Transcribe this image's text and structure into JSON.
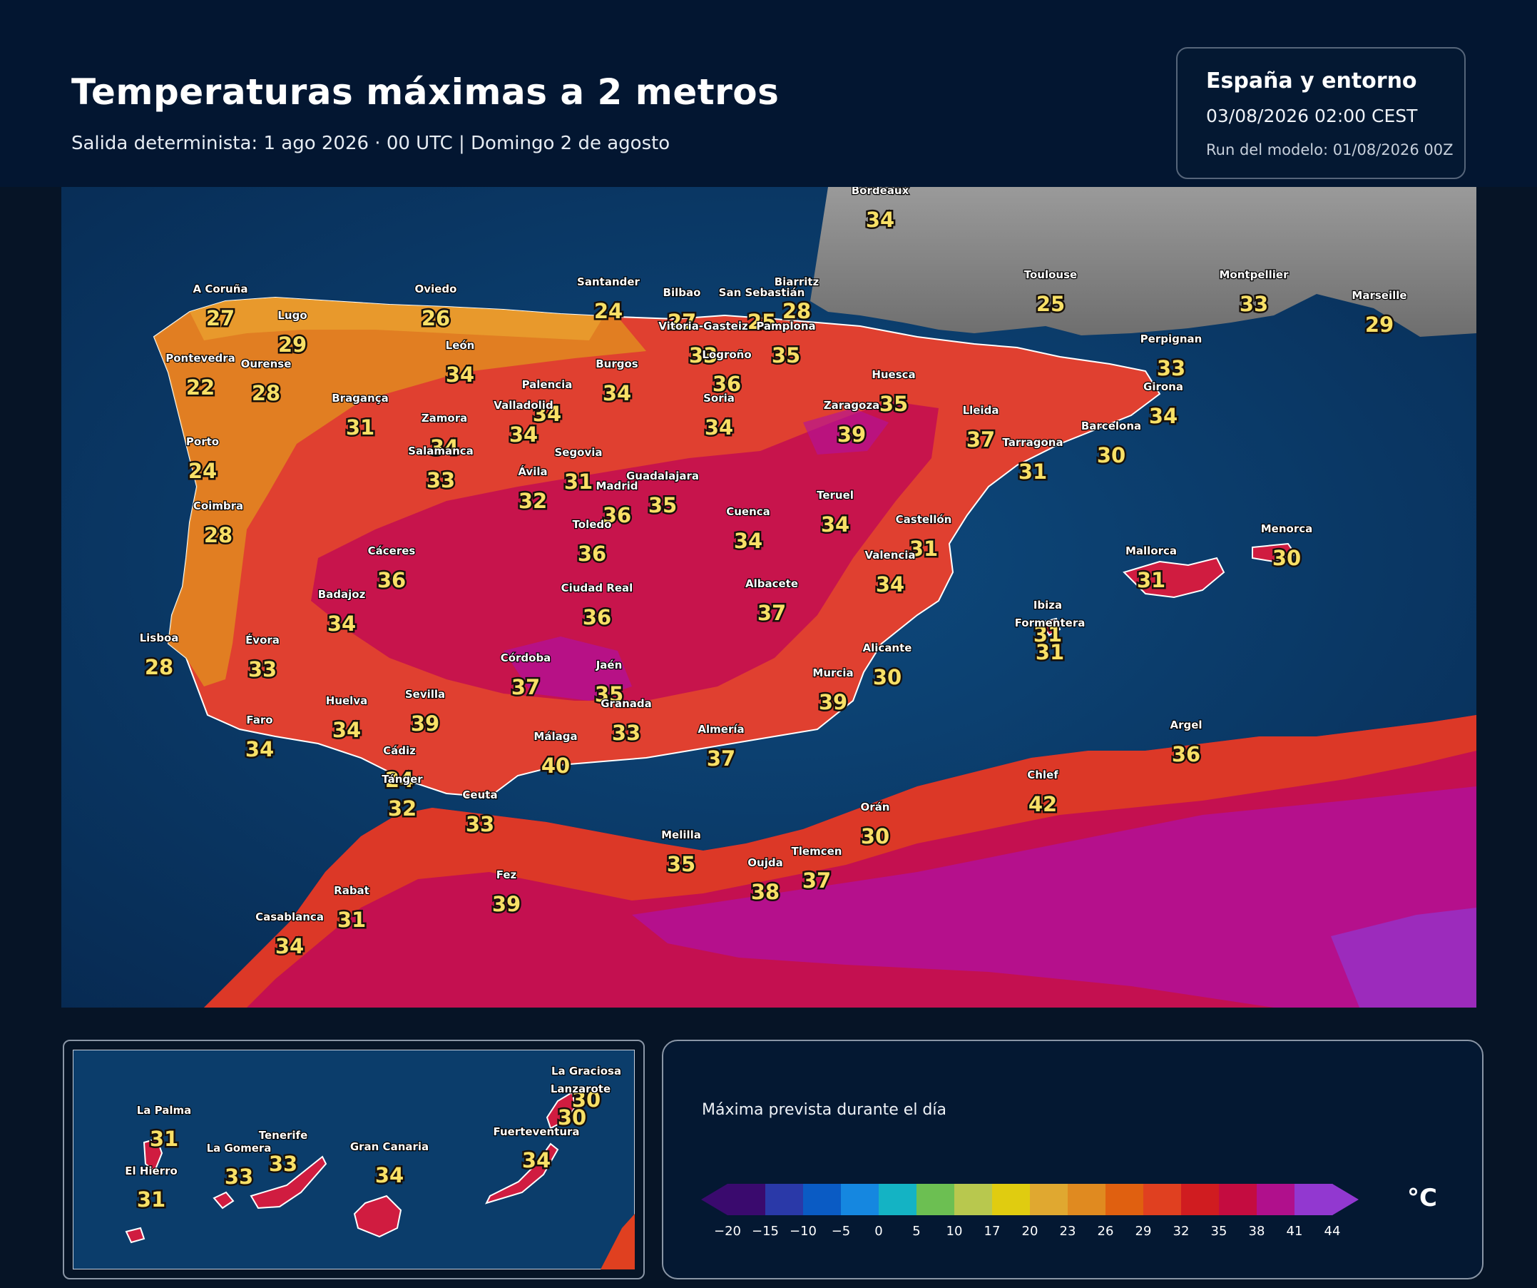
{
  "header": {
    "title": "Temperaturas máximas a 2 metros",
    "subtitle": "Salida determinista: 1 ago 2026 · 00 UTC  |  Domingo 2 de agosto"
  },
  "info": {
    "region": "España y entorno",
    "valid_time": "03/08/2026  02:00 CEST",
    "model_run": "Run del modelo: 01/08/2026 00Z"
  },
  "legend": {
    "title": "Máxima prevista durante el día",
    "unit": "°C",
    "ticks": [
      "−20",
      "−15",
      "−10",
      "−5",
      "0",
      "5",
      "10",
      "17",
      "20",
      "23",
      "26",
      "29",
      "32",
      "35",
      "38",
      "41",
      "44"
    ],
    "colors": [
      "#3a0a6e",
      "#2a39a8",
      "#0a5bc4",
      "#1587e0",
      "#14b3c4",
      "#6cbf52",
      "#b8c84e",
      "#e0cc10",
      "#e0a830",
      "#e08a20",
      "#e06010",
      "#e04020",
      "#d01c20",
      "#c40c40",
      "#b0108c",
      "#9238d0"
    ]
  },
  "colors": {
    "sea": "#0b3d6b",
    "land_france": "#8a8a8a",
    "iberia_low": "#e08a20",
    "iberia_mid": "#e04030",
    "iberia_high": "#c41050",
    "hot_peak": "#b010a0",
    "label_value": "#f8e066"
  },
  "cities": [
    {
      "name": "Bordeaux",
      "value": "34"
    },
    {
      "name": "A Coruña",
      "value": "27"
    },
    {
      "name": "Oviedo",
      "value": "26"
    },
    {
      "name": "Santander",
      "value": "24"
    },
    {
      "name": "Bilbao",
      "value": "27"
    },
    {
      "name": "San Sebastián",
      "value": "25"
    },
    {
      "name": "Biarritz",
      "value": "28"
    },
    {
      "name": "Toulouse",
      "value": "25"
    },
    {
      "name": "Montpellier",
      "value": "33"
    },
    {
      "name": "Marseille",
      "value": "29"
    },
    {
      "name": "Lugo",
      "value": "29"
    },
    {
      "name": "Vitoria-Gasteiz",
      "value": "33"
    },
    {
      "name": "Pamplona",
      "value": "35"
    },
    {
      "name": "Pontevedra",
      "value": "22"
    },
    {
      "name": "Ourense",
      "value": "28"
    },
    {
      "name": "León",
      "value": "34"
    },
    {
      "name": "Burgos",
      "value": "34"
    },
    {
      "name": "Logroño",
      "value": "36"
    },
    {
      "name": "Perpignan",
      "value": "33"
    },
    {
      "name": "Huesca",
      "value": "35"
    },
    {
      "name": "Girona",
      "value": "34"
    },
    {
      "name": "Palencia",
      "value": "34"
    },
    {
      "name": "Bragança",
      "value": "31"
    },
    {
      "name": "Soria",
      "value": "34"
    },
    {
      "name": "Zaragoza",
      "value": "39"
    },
    {
      "name": "Lleida",
      "value": "37"
    },
    {
      "name": "Valladolid",
      "value": "34"
    },
    {
      "name": "Zamora",
      "value": "34"
    },
    {
      "name": "Barcelona",
      "value": "30"
    },
    {
      "name": "Porto",
      "value": "24"
    },
    {
      "name": "Tarragona",
      "value": "31"
    },
    {
      "name": "Salamanca",
      "value": "33"
    },
    {
      "name": "Segovia",
      "value": "31"
    },
    {
      "name": "Guadalajara",
      "value": "35"
    },
    {
      "name": "Ávila",
      "value": "32"
    },
    {
      "name": "Madrid",
      "value": "36"
    },
    {
      "name": "Teruel",
      "value": "34"
    },
    {
      "name": "Coimbra",
      "value": "28"
    },
    {
      "name": "Cuenca",
      "value": "34"
    },
    {
      "name": "Castellón",
      "value": "31"
    },
    {
      "name": "Toledo",
      "value": "36"
    },
    {
      "name": "Menorca",
      "value": "30"
    },
    {
      "name": "Mallorca",
      "value": "31"
    },
    {
      "name": "Cáceres",
      "value": "36"
    },
    {
      "name": "Valencia",
      "value": "34"
    },
    {
      "name": "Badajoz",
      "value": "34"
    },
    {
      "name": "Ciudad Real",
      "value": "36"
    },
    {
      "name": "Albacete",
      "value": "37"
    },
    {
      "name": "Ibiza",
      "value": "31"
    },
    {
      "name": "Formentera",
      "value": "31"
    },
    {
      "name": "Lisboa",
      "value": "28"
    },
    {
      "name": "Évora",
      "value": "33"
    },
    {
      "name": "Alicante",
      "value": "30"
    },
    {
      "name": "Murcia",
      "value": "39"
    },
    {
      "name": "Córdoba",
      "value": "37"
    },
    {
      "name": "Jaén",
      "value": "35"
    },
    {
      "name": "Sevilla",
      "value": "39"
    },
    {
      "name": "Huelva",
      "value": "34"
    },
    {
      "name": "Granada",
      "value": "33"
    },
    {
      "name": "Faro",
      "value": "34"
    },
    {
      "name": "Almería",
      "value": "37"
    },
    {
      "name": "Málaga",
      "value": "40"
    },
    {
      "name": "Argel",
      "value": "36"
    },
    {
      "name": "Cádiz",
      "value": "24"
    },
    {
      "name": "Chlef",
      "value": "42"
    },
    {
      "name": "Tánger",
      "value": "32"
    },
    {
      "name": "Ceuta",
      "value": "33"
    },
    {
      "name": "Orán",
      "value": "30"
    },
    {
      "name": "Melilla",
      "value": "35"
    },
    {
      "name": "Tlemcen",
      "value": "37"
    },
    {
      "name": "Oujda",
      "value": "38"
    },
    {
      "name": "Rabat",
      "value": "31"
    },
    {
      "name": "Fez",
      "value": "39"
    },
    {
      "name": "Casablanca",
      "value": "34"
    }
  ],
  "canarias": [
    {
      "name": "La Graciosa",
      "value": "30"
    },
    {
      "name": "Lanzarote",
      "value": "30"
    },
    {
      "name": "La Palma",
      "value": "31"
    },
    {
      "name": "Fuerteventura",
      "value": "34"
    },
    {
      "name": "Tenerife",
      "value": "33"
    },
    {
      "name": "La Gomera",
      "value": "33"
    },
    {
      "name": "Gran Canaria",
      "value": "34"
    },
    {
      "name": "El Hierro",
      "value": "31"
    }
  ]
}
